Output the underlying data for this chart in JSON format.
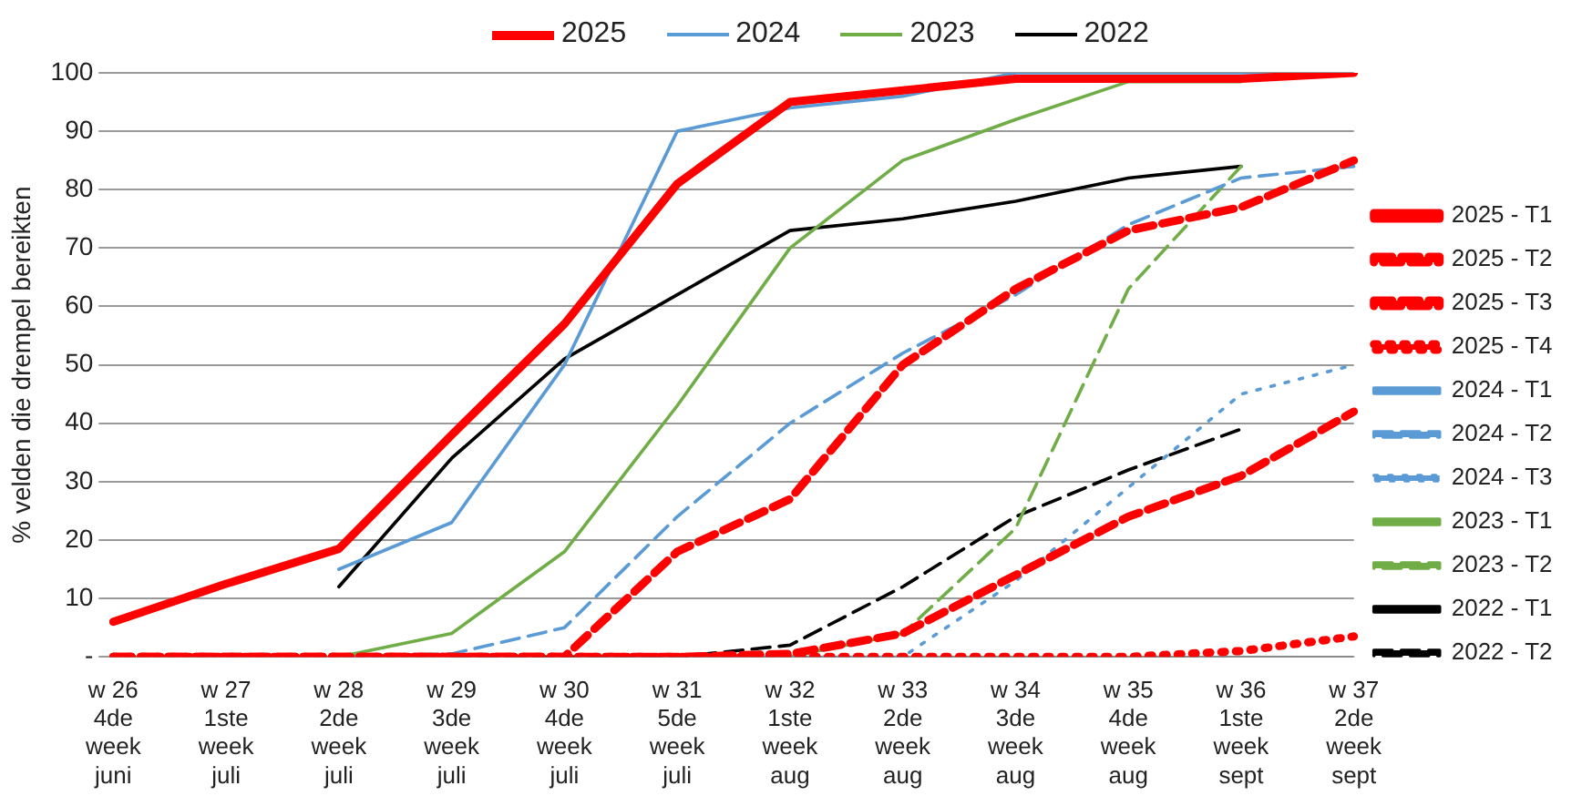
{
  "chart_data": {
    "type": "line",
    "ylabel": "% velden die drempel bereikten",
    "categories": [
      "w 26\n4de\nweek\njuni",
      "w 27\n1ste\nweek\njuli",
      "w 28\n2de\nweek\njuli",
      "w 29\n3de\nweek\njuli",
      "w 30\n4de\nweek\njuli",
      "w 31\n5de\nweek\njuli",
      "w 32\n1ste\nweek\naug",
      "w 33\n2de\nweek\naug",
      "w 34\n3de\nweek\naug",
      "w 35\n4de\nweek\naug",
      "w 36\n1ste\nweek\nsept",
      "w 37\n2de\nweek\nsept"
    ],
    "series": [
      {
        "name": "2025 - T1",
        "color": "#ff0000",
        "line_style": "solid",
        "values": [
          6,
          12.5,
          18.5,
          38,
          57,
          81,
          95,
          97,
          99,
          99,
          99,
          100
        ]
      },
      {
        "name": "2025 - T2",
        "color": "#ff0000",
        "line_style": "dashed",
        "values": [
          0,
          0,
          0,
          0,
          0,
          18,
          27,
          50,
          63,
          73,
          77,
          85
        ]
      },
      {
        "name": "2025 - T3",
        "color": "#ff0000",
        "line_style": "dashed",
        "values": [
          0,
          0,
          0,
          0,
          0,
          0,
          0.5,
          4,
          14,
          24,
          31,
          42
        ]
      },
      {
        "name": "2025 - T4",
        "color": "#ff0000",
        "line_style": "dotted",
        "values": [
          0,
          0,
          0,
          0,
          0,
          0,
          0,
          0,
          0,
          0,
          1,
          3.5
        ]
      },
      {
        "name": "2024 - T1",
        "color": "#5b9bd5",
        "line_style": "solid",
        "values": [
          null,
          null,
          15,
          23,
          50,
          90,
          94,
          96,
          100,
          100,
          100,
          100
        ]
      },
      {
        "name": "2024 - T2",
        "color": "#5b9bd5",
        "line_style": "dashed",
        "values": [
          null,
          null,
          0,
          0.5,
          5,
          24,
          40,
          52,
          62,
          74,
          82,
          84
        ]
      },
      {
        "name": "2024 - T3",
        "color": "#5b9bd5",
        "line_style": "dotted",
        "values": [
          null,
          null,
          null,
          null,
          null,
          0,
          0,
          0,
          13,
          29,
          45,
          50
        ]
      },
      {
        "name": "2023 - T1",
        "color": "#70ad47",
        "line_style": "solid",
        "values": [
          null,
          null,
          0,
          4,
          18,
          43,
          70,
          85,
          92,
          98.5,
          98.5,
          null
        ]
      },
      {
        "name": "2023 - T2",
        "color": "#70ad47",
        "line_style": "dashed",
        "values": [
          null,
          null,
          null,
          null,
          null,
          null,
          0,
          4,
          22,
          63,
          84,
          null
        ]
      },
      {
        "name": "2022 - T1",
        "color": "#000000",
        "line_style": "solid",
        "values": [
          null,
          null,
          12,
          34,
          51,
          62,
          73,
          75,
          78,
          82,
          84,
          null
        ]
      },
      {
        "name": "2022 - T2",
        "color": "#000000",
        "line_style": "dashed",
        "values": [
          null,
          null,
          null,
          0,
          0,
          0,
          2,
          12,
          24,
          32,
          39,
          null
        ]
      }
    ],
    "annotations": [
      "2025",
      "2024",
      "2023",
      "2022"
    ],
    "ylim": [
      0,
      100
    ],
    "yticks": [
      {
        "value": 0,
        "label": "-"
      },
      10,
      20,
      30,
      40,
      50,
      60,
      70,
      80,
      90,
      100
    ],
    "grid": "y",
    "legend": "right",
    "marker": "none"
  }
}
